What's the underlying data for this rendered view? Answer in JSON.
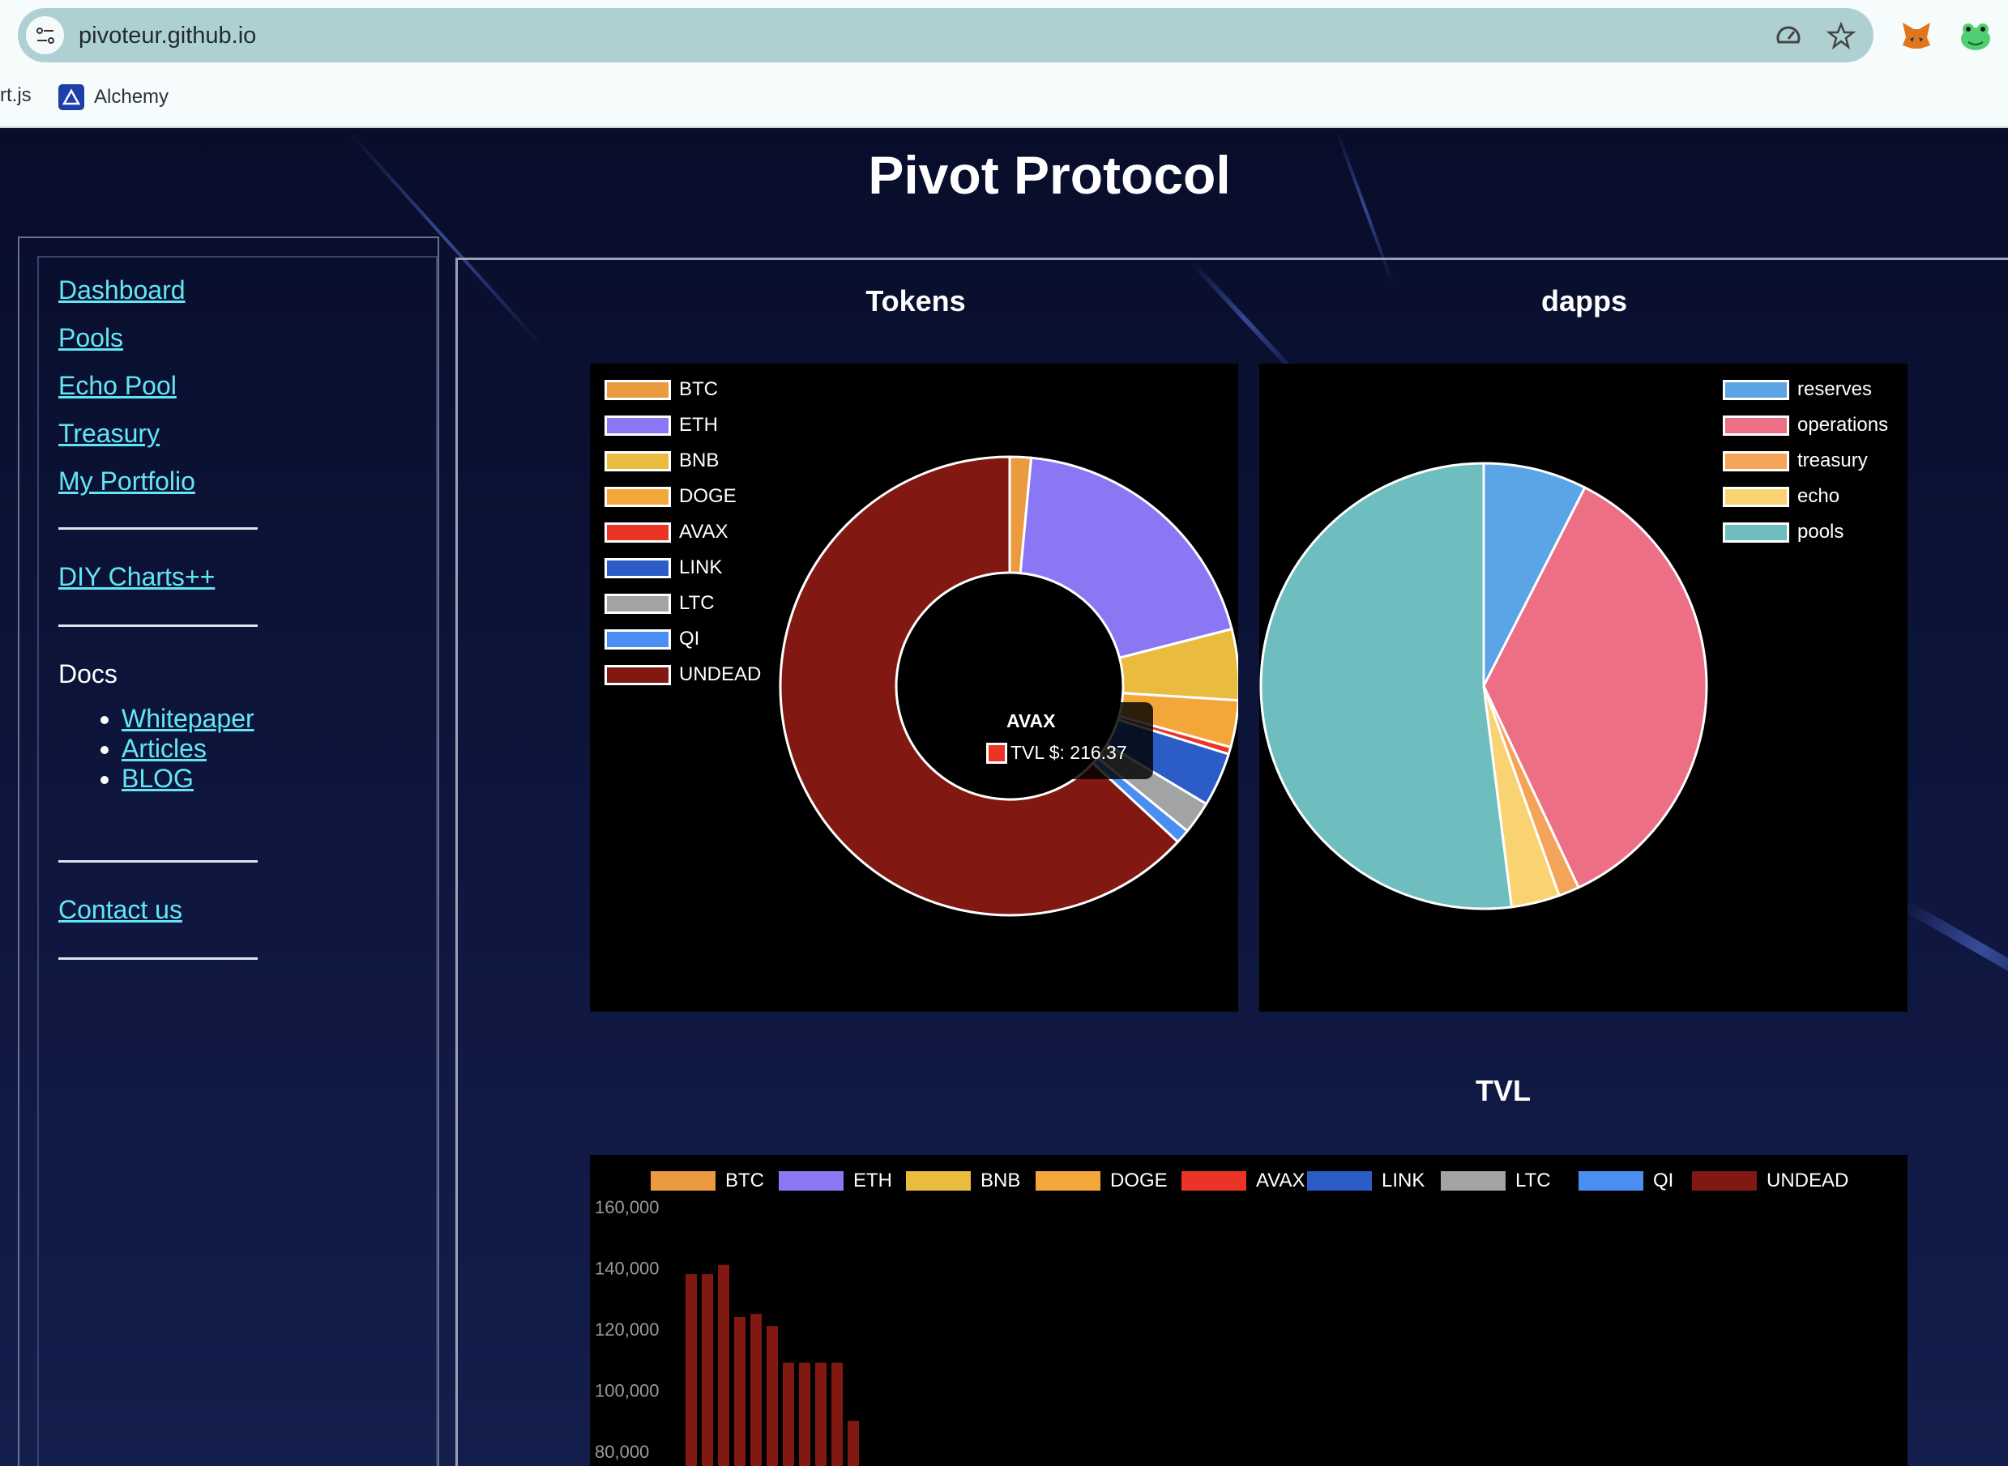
{
  "browser": {
    "url": "pivoteur.github.io",
    "bookmarks": [
      {
        "label": "rt.js"
      },
      {
        "label": "Alchemy"
      }
    ]
  },
  "site": {
    "title": "Pivot Protocol"
  },
  "sidebar": {
    "links": [
      "Dashboard",
      "Pools",
      "Echo Pool",
      "Treasury",
      "My Portfolio"
    ],
    "diy": "DIY Charts++",
    "docs_title": "Docs",
    "docs_links": [
      "Whitepaper",
      "Articles",
      "BLOG"
    ],
    "contact": "Contact us"
  },
  "sections": {
    "tokens_title": "Tokens",
    "dapps_title": "dapps",
    "tvl_title": "TVL"
  },
  "colors": {
    "BTC": "#ec9a3f",
    "ETH": "#8b77f4",
    "BNB": "#e9bb3e",
    "DOGE": "#f3a73b",
    "AVAX": "#ec3426",
    "LINK": "#2c5cc6",
    "LTC": "#a2a3a4",
    "QI": "#4a8ef2",
    "UNDEAD": "#811811",
    "reserves": "#5ba4e5",
    "operations": "#ec6f86",
    "treasury": "#f4a458",
    "echo": "#f9d372",
    "pools": "#6ebec0"
  },
  "tooltip": {
    "title": "AVAX",
    "label": "TVL $: 216.37"
  },
  "chart_data": [
    {
      "type": "pie",
      "variant": "doughnut",
      "title": "Tokens",
      "labels": [
        "BTC",
        "ETH",
        "BNB",
        "DOGE",
        "AVAX",
        "LINK",
        "LTC",
        "QI",
        "UNDEAD"
      ],
      "values": [
        1.5,
        19.5,
        5,
        3.3,
        0.5,
        3.8,
        2.3,
        1,
        63.1
      ],
      "legend": "top-left"
    },
    {
      "type": "pie",
      "title": "dapps",
      "labels": [
        "reserves",
        "operations",
        "treasury",
        "echo",
        "pools"
      ],
      "values": [
        7.5,
        35.5,
        1.5,
        3.5,
        52
      ],
      "legend": "top-right"
    },
    {
      "type": "bar",
      "title": "TVL",
      "series": [
        {
          "name": "BTC",
          "values": []
        },
        {
          "name": "ETH",
          "values": []
        },
        {
          "name": "BNB",
          "values": []
        },
        {
          "name": "DOGE",
          "values": []
        },
        {
          "name": "AVAX",
          "values": []
        },
        {
          "name": "LINK",
          "values": []
        },
        {
          "name": "LTC",
          "values": []
        },
        {
          "name": "QI",
          "values": []
        },
        {
          "name": "UNDEAD",
          "values": [
            138000,
            138000,
            141000,
            124000,
            125000,
            121000,
            109000,
            109000,
            109000,
            109000,
            90000
          ]
        }
      ],
      "yticks": [
        "160,000",
        "140,000",
        "120,000",
        "100,000",
        "80,000"
      ],
      "ylim": [
        80000,
        160000
      ],
      "legend": "top"
    }
  ]
}
